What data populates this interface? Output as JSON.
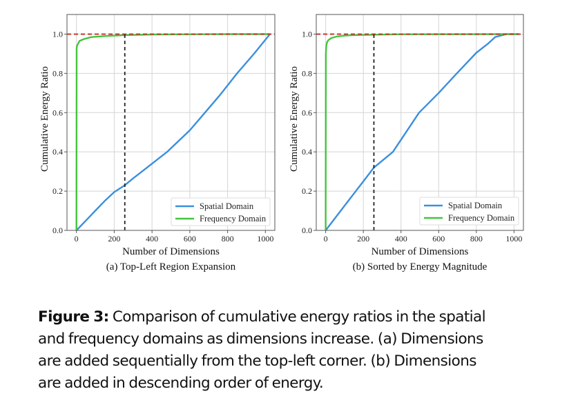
{
  "chart_data": [
    {
      "type": "line",
      "panel_label": "(a) Top-Left Region Expansion",
      "title": "",
      "xlabel": "Number of Dimensions",
      "ylabel": "Cumulative Energy Ratio",
      "xlim": [
        -50,
        1050
      ],
      "ylim": [
        0.0,
        1.1
      ],
      "xticks": [
        0,
        200,
        400,
        600,
        800,
        1000
      ],
      "xtick_labels": [
        "0",
        "200",
        "400",
        "600",
        "800",
        "1000"
      ],
      "yticks": [
        0.0,
        0.2,
        0.4,
        0.6,
        0.8,
        1.0
      ],
      "ytick_labels": [
        "0.0",
        "0.2",
        "0.4",
        "0.6",
        "0.8",
        "1.0"
      ],
      "grid": true,
      "legend": "lower-right",
      "reference_lines": [
        {
          "orientation": "horizontal",
          "value": 1.0,
          "color": "#c0392b",
          "style": "dashed"
        },
        {
          "orientation": "vertical",
          "value": 256,
          "ymax": 1.0,
          "color": "#222222",
          "style": "dashed"
        }
      ],
      "series": [
        {
          "name": "Spatial Domain",
          "color": "#3a8fdc",
          "x": [
            0,
            50,
            100,
            150,
            200,
            256,
            300,
            400,
            480,
            600,
            680,
            760,
            850,
            940,
            1024
          ],
          "y": [
            0.0,
            0.05,
            0.1,
            0.15,
            0.195,
            0.23,
            0.265,
            0.34,
            0.4,
            0.51,
            0.6,
            0.69,
            0.8,
            0.9,
            1.0
          ]
        },
        {
          "name": "Frequency Domain",
          "color": "#44c43c",
          "x": [
            0,
            1,
            3,
            16,
            40,
            80,
            150,
            256,
            400,
            600,
            800,
            1024
          ],
          "y": [
            0.0,
            0.93,
            0.94,
            0.965,
            0.975,
            0.985,
            0.99,
            0.995,
            0.998,
            0.999,
            1.0,
            1.0
          ]
        }
      ]
    },
    {
      "type": "line",
      "panel_label": "(b) Sorted by Energy Magnitude",
      "title": "",
      "xlabel": "Number of Dimensions",
      "ylabel": "Cumulative Energy Ratio",
      "xlim": [
        -50,
        1050
      ],
      "ylim": [
        0.0,
        1.1
      ],
      "xticks": [
        0,
        200,
        400,
        600,
        800,
        1000
      ],
      "xtick_labels": [
        "0",
        "200",
        "400",
        "600",
        "800",
        "1000"
      ],
      "yticks": [
        0.0,
        0.2,
        0.4,
        0.6,
        0.8,
        1.0
      ],
      "ytick_labels": [
        "0.0",
        "0.2",
        "0.4",
        "0.6",
        "0.8",
        "1.0"
      ],
      "grid": true,
      "legend": "lower-right",
      "reference_lines": [
        {
          "orientation": "horizontal",
          "value": 1.0,
          "color": "#c0392b",
          "style": "dashed"
        },
        {
          "orientation": "vertical",
          "value": 256,
          "ymax": 1.0,
          "color": "#222222",
          "style": "dashed"
        }
      ],
      "series": [
        {
          "name": "Spatial Domain",
          "color": "#3a8fdc",
          "x": [
            0,
            100,
            200,
            256,
            357,
            496,
            600,
            696,
            800,
            860,
            900,
            940,
            960,
            1024
          ],
          "y": [
            0.0,
            0.125,
            0.25,
            0.32,
            0.4,
            0.6,
            0.7,
            0.8,
            0.905,
            0.95,
            0.985,
            0.995,
            1.0,
            1.0
          ]
        },
        {
          "name": "Frequency Domain",
          "color": "#44c43c",
          "x": [
            0,
            1,
            3,
            8,
            15,
            30,
            60,
            100,
            150,
            256,
            400,
            1024
          ],
          "y": [
            0.0,
            0.9,
            0.94,
            0.96,
            0.97,
            0.98,
            0.988,
            0.992,
            0.995,
            0.997,
            0.999,
            1.0
          ]
        }
      ]
    }
  ],
  "caption": {
    "label": "Figure 3:",
    "lines": [
      " Comparison of cumulative energy ratios in the spatial",
      "and frequency domains as dimensions increase. (a) Dimensions",
      "are added sequentially from the top-left corner. (b) Dimensions",
      "are added in descending order of energy."
    ]
  }
}
